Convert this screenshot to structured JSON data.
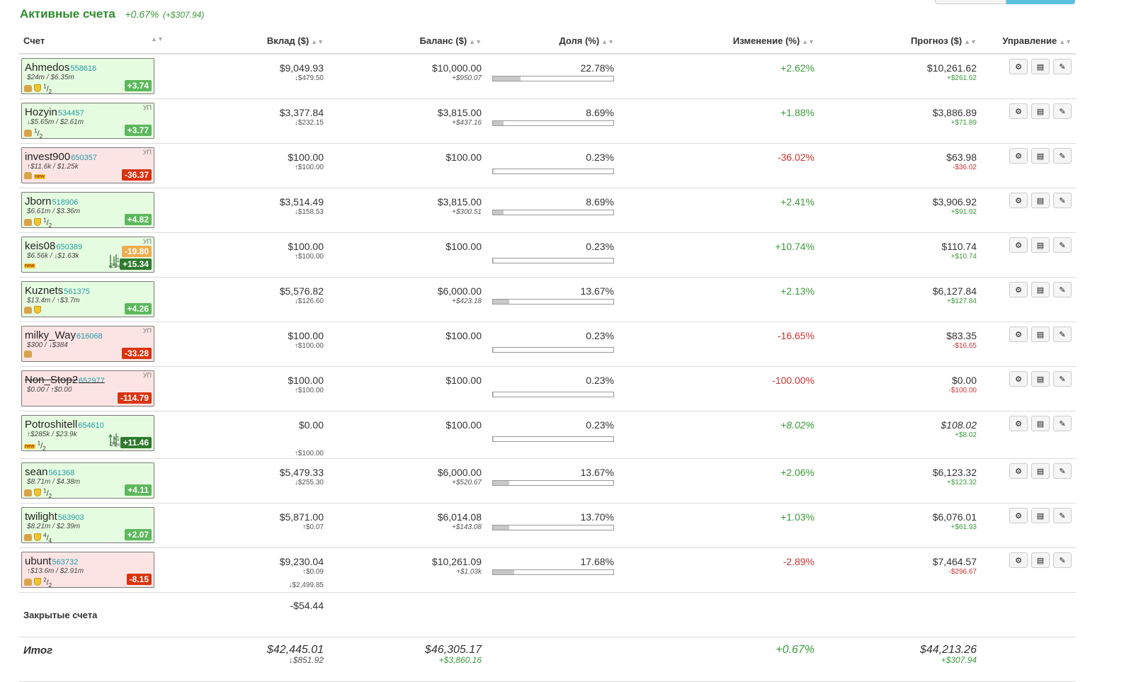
{
  "header": {
    "title": "Активные счета",
    "change_pct": "+0.67%",
    "change_abs": "(+$307.94)"
  },
  "columns": {
    "account": "Счет",
    "deposit": "Вклад ($)",
    "balance": "Баланс ($)",
    "share": "Доля (%)",
    "change": "Изменение (%)",
    "forecast": "Прогноз ($)",
    "manage": "Управление"
  },
  "colors": {
    "positive": "#3a9a3a",
    "negative": "#cc3333",
    "card_green": "#e6fce0",
    "card_red": "#fde4e4"
  },
  "icons": {
    "settings": "gear-icon",
    "report": "list-icon",
    "edit": "pencil-icon"
  },
  "accounts": [
    {
      "name": "Ahmedos",
      "id": "558616",
      "stats": "$24m / $6.35m",
      "up": "",
      "fr_n": "1",
      "fr_d": "2",
      "badge": "+3.74",
      "badge2": "",
      "card": "g",
      "thumb": true,
      "shield": true,
      "new": false,
      "dep": "$9,049.93",
      "dep_sub": "↓$479.50",
      "dep_sub2": "",
      "bal": "$10,000.00",
      "bal_sub": "+$950.07",
      "share": "22.78%",
      "share_val": 22.78,
      "chg": "+2.62%",
      "chg_cls": "pos",
      "fc": "$10,261.62",
      "fc_sub": "+$261.62",
      "fc_cls": "pos"
    },
    {
      "name": "Hozyin",
      "id": "534457",
      "stats": "↓$5.65m / $2.61m",
      "up": "УП",
      "fr_n": "1",
      "fr_d": "2",
      "badge": "+3.77",
      "badge2": "",
      "card": "g",
      "thumb": true,
      "shield": false,
      "new": false,
      "dep": "$3,377.84",
      "dep_sub": "↓$232.15",
      "dep_sub2": "",
      "bal": "$3,815.00",
      "bal_sub": "+$437.16",
      "share": "8.69%",
      "share_val": 8.69,
      "chg": "+1.88%",
      "chg_cls": "pos",
      "fc": "$3,886.89",
      "fc_sub": "+$71.89",
      "fc_cls": "pos"
    },
    {
      "name": "invest900",
      "id": "650357",
      "stats": "↑$11.6k / $1.25k",
      "up": "УП",
      "fr_n": "",
      "fr_d": "",
      "badge": "-36.37",
      "badge2": "",
      "card": "r",
      "thumb": true,
      "shield": false,
      "new": true,
      "dep": "$100.00",
      "dep_sub": "↑$100.00",
      "dep_sub2": "",
      "bal": "$100.00",
      "bal_sub": "",
      "share": "0.23%",
      "share_val": 0.23,
      "chg": "-36.02%",
      "chg_cls": "neg",
      "fc": "$63.98",
      "fc_sub": "-$36.02",
      "fc_cls": "neg"
    },
    {
      "name": "Jborn",
      "id": "518906",
      "stats": "$6.61m / $3.36m",
      "up": "",
      "fr_n": "1",
      "fr_d": "2",
      "badge": "+4.82",
      "badge2": "",
      "card": "g",
      "thumb": true,
      "shield": true,
      "new": false,
      "dep": "$3,514.49",
      "dep_sub": "↓$158.53",
      "dep_sub2": "",
      "bal": "$3,815.00",
      "bal_sub": "+$300.51",
      "share": "8.69%",
      "share_val": 8.69,
      "chg": "+2.41%",
      "chg_cls": "pos",
      "fc": "$3,906.92",
      "fc_sub": "+$91.92",
      "fc_cls": "pos"
    },
    {
      "name": "keis08",
      "id": "650389",
      "stats": "$6.56k / ↓$1.63k",
      "up": "УП",
      "fr_n": "",
      "fr_d": "",
      "badge": "+15.34",
      "badge2": "-19.80",
      "card": "g",
      "thumb": false,
      "shield": false,
      "new": true,
      "mini1": "-1",
      "mini2": "21ч",
      "spark": "down",
      "dep": "$100.00",
      "dep_sub": "↑$100.00",
      "dep_sub2": "",
      "bal": "$100.00",
      "bal_sub": "",
      "share": "0.23%",
      "share_val": 0.23,
      "chg": "+10.74%",
      "chg_cls": "pos",
      "fc": "$110.74",
      "fc_sub": "+$10.74",
      "fc_cls": "pos"
    },
    {
      "name": "Kuznets",
      "id": "561375",
      "stats": "$13.4m / ↑$3.7m",
      "up": "",
      "fr_n": "",
      "fr_d": "",
      "badge": "+4.26",
      "badge2": "",
      "card": "g",
      "thumb": true,
      "shield": true,
      "new": false,
      "dep": "$5,576.82",
      "dep_sub": "↓$126.60",
      "dep_sub2": "",
      "bal": "$6,000.00",
      "bal_sub": "+$423.18",
      "share": "13.67%",
      "share_val": 13.67,
      "chg": "+2.13%",
      "chg_cls": "pos",
      "fc": "$6,127.84",
      "fc_sub": "+$127.84",
      "fc_cls": "pos"
    },
    {
      "name": "milky_Way",
      "id": "616068",
      "stats": "$300 / ↓$384",
      "up": "УП",
      "fr_n": "",
      "fr_d": "",
      "badge": "-33.28",
      "badge2": "",
      "card": "r",
      "thumb": true,
      "shield": false,
      "new": false,
      "dep": "$100.00",
      "dep_sub": "↑$100.00",
      "dep_sub2": "",
      "bal": "$100.00",
      "bal_sub": "",
      "share": "0.23%",
      "share_val": 0.23,
      "chg": "-16.65%",
      "chg_cls": "neg",
      "fc": "$83.35",
      "fc_sub": "-$16.65",
      "fc_cls": "neg"
    },
    {
      "name": "Non_Stop2",
      "id": "652977",
      "stats": "$0.00 / ↑$0.00",
      "up": "УП",
      "fr_n": "",
      "fr_d": "",
      "badge": "-114.79",
      "badge2": "",
      "card": "r",
      "thumb": false,
      "shield": false,
      "new": false,
      "strike": true,
      "dep": "$100.00",
      "dep_sub": "↑$100.00",
      "dep_sub2": "",
      "bal": "$100.00",
      "bal_sub": "",
      "share": "0.23%",
      "share_val": 0.23,
      "chg": "-100.00%",
      "chg_cls": "neg",
      "fc": "$0.00",
      "fc_sub": "-$100.00",
      "fc_cls": "neg"
    },
    {
      "name": "Potroshitell",
      "id": "654610",
      "stats": "↑$285k / $23.9k",
      "up": "",
      "fr_n": "1",
      "fr_d": "2",
      "badge": "+11.46",
      "badge2": "",
      "card": "g",
      "thumb": false,
      "shield": false,
      "new": true,
      "mini1": "+1",
      "mini2": "21ч",
      "spark": "up",
      "dep": "$0.00",
      "dep_sub": "",
      "dep_sub2": "↑$100.00",
      "bal": "$100.00",
      "bal_sub": "",
      "share": "0.23%",
      "share_val": 0.23,
      "chg": "+8.02%",
      "chg_cls": "pos",
      "chg_it": true,
      "fc": "$108.02",
      "fc_it": true,
      "fc_sub": "+$8.02",
      "fc_cls": "pos"
    },
    {
      "name": "sean",
      "id": "561368",
      "stats": "$8.71m / $4.38m",
      "up": "",
      "fr_n": "1",
      "fr_d": "2",
      "badge": "+4.11",
      "badge2": "",
      "card": "g",
      "thumb": true,
      "shield": true,
      "new": false,
      "dep": "$5,479.33",
      "dep_sub": "↓$255.30",
      "dep_sub2": "",
      "bal": "$6,000.00",
      "bal_sub": "+$520.67",
      "share": "13.67%",
      "share_val": 13.67,
      "chg": "+2.06%",
      "chg_cls": "pos",
      "fc": "$6,123.32",
      "fc_sub": "+$123.32",
      "fc_cls": "pos"
    },
    {
      "name": "twilight",
      "id": "563903",
      "stats": "$8.21m / $2.39m",
      "up": "",
      "fr_n": "4",
      "fr_d": "4",
      "badge": "+2.07",
      "badge2": "",
      "card": "g",
      "thumb": true,
      "shield": true,
      "new": false,
      "dep": "$5,871.00",
      "dep_sub": "↑$0.07",
      "dep_sub2": "",
      "bal": "$6,014.08",
      "bal_sub": "+$143.08",
      "share": "13.70%",
      "share_val": 13.7,
      "chg": "+1.03%",
      "chg_cls": "pos",
      "fc": "$6,076.01",
      "fc_sub": "+$61.93",
      "fc_cls": "pos"
    },
    {
      "name": "ubunt",
      "id": "563732",
      "stats": "↑$13.6m / $2.91m",
      "up": "",
      "fr_n": "2",
      "fr_d": "2",
      "badge": "-8.15",
      "badge2": "",
      "card": "r",
      "thumb": true,
      "shield": true,
      "new": false,
      "dep": "$9,230.04",
      "dep_sub": "↑$0.09",
      "dep_sub2": "↓$2,499.85",
      "bal": "$10,261.09",
      "bal_sub": "+$1.03k",
      "share": "17.68%",
      "share_val": 17.68,
      "chg": "-2.89%",
      "chg_cls": "neg",
      "fc": "$7,464.57",
      "fc_sub": "-$296.67",
      "fc_cls": "neg"
    }
  ],
  "closed": {
    "label": "Закрытые счета",
    "deposit": "-$54.44"
  },
  "total": {
    "label": "Итог",
    "deposit": "$42,445.01",
    "deposit_sub": "↓$851.92",
    "balance": "$46,305.17",
    "balance_sub": "+$3,860.16",
    "change": "+0.67%",
    "forecast": "$44,213.26",
    "forecast_sub": "+$307.94"
  }
}
